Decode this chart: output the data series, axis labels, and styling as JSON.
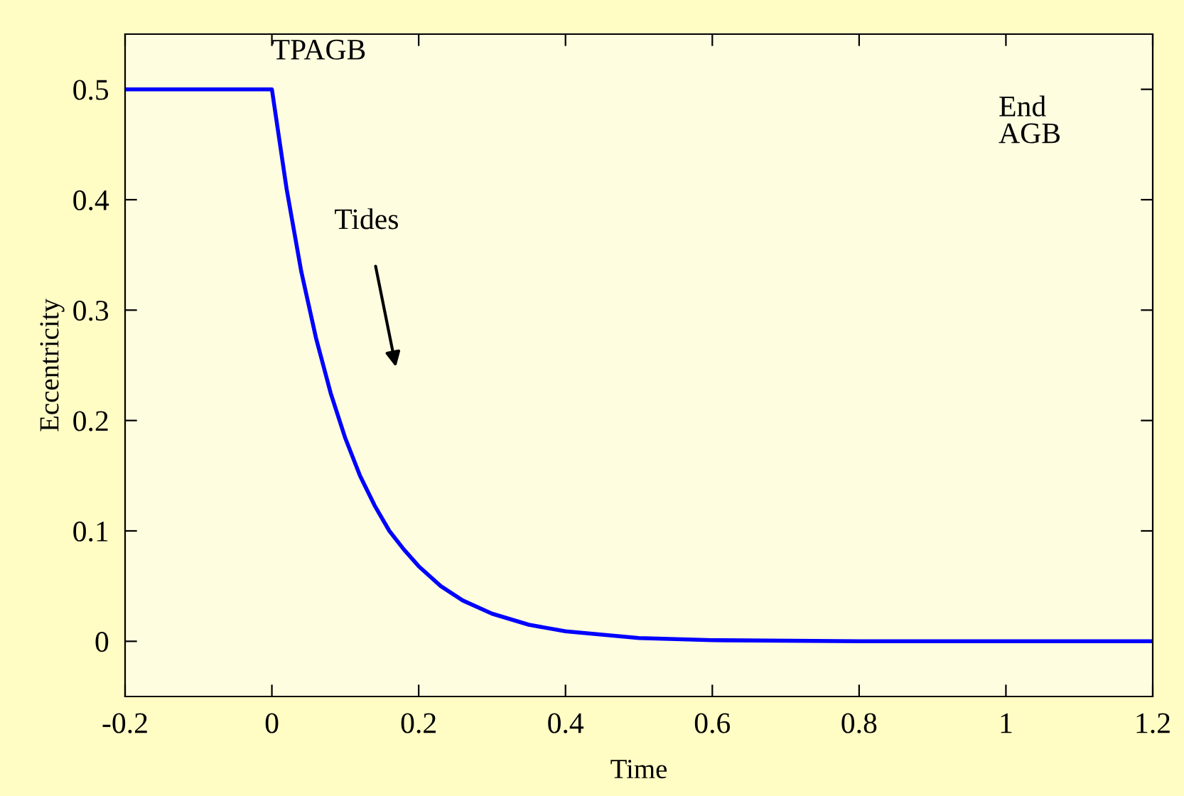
{
  "chart_data": {
    "type": "line",
    "xlabel": "Time",
    "ylabel": "Eccentricity",
    "x": [
      -0.2,
      0,
      0.02,
      0.04,
      0.06,
      0.08,
      0.1,
      0.12,
      0.14,
      0.16,
      0.18,
      0.2,
      0.23,
      0.26,
      0.3,
      0.35,
      0.4,
      0.45,
      0.5,
      0.6,
      0.8,
      1.0,
      1.2
    ],
    "series": [
      {
        "color": "#0000ff",
        "values": [
          0.5,
          0.5,
          0.41,
          0.335,
          0.275,
          0.225,
          0.184,
          0.15,
          0.123,
          0.1,
          0.083,
          0.068,
          0.05,
          0.037,
          0.025,
          0.015,
          0.009,
          0.006,
          0.003,
          0.001,
          0,
          0,
          0
        ]
      }
    ],
    "xlim": [
      -0.2,
      1.2
    ],
    "ylim": [
      -0.05,
      0.55
    ],
    "xticks": [
      -0.2,
      0,
      0.2,
      0.4,
      0.6,
      0.8,
      1,
      1.2
    ],
    "yticks": [
      0,
      0.1,
      0.2,
      0.3,
      0.4,
      0.5
    ],
    "grid": false,
    "legend": false,
    "marker": "none",
    "line_style": "solid",
    "annotations": [
      {
        "text": "TPAGB",
        "x": 0,
        "y": 0.5
      },
      "Tides",
      "End\nAGB"
    ]
  }
}
